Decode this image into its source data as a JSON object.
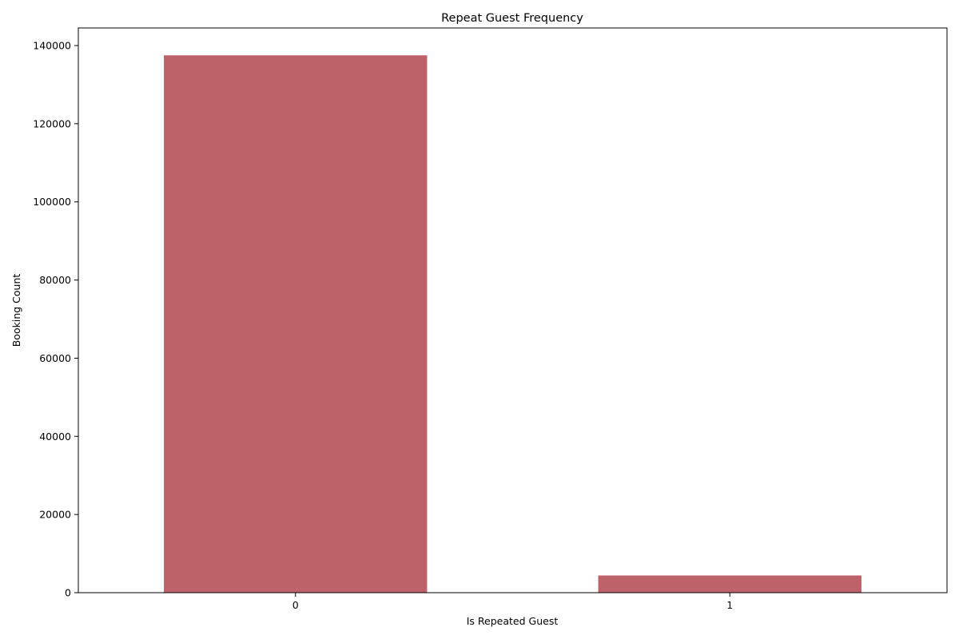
{
  "chart_data": {
    "type": "bar",
    "title": "Repeat Guest Frequency",
    "xlabel": "Is Repeated Guest",
    "ylabel": "Booking Count",
    "categories": [
      "0",
      "1"
    ],
    "values": [
      137500,
      4400
    ],
    "ylim": [
      0,
      144500
    ],
    "yticks": [
      0,
      20000,
      40000,
      60000,
      80000,
      100000,
      120000,
      140000
    ],
    "bar_color": "#be626a",
    "grid": false,
    "legend": "none"
  }
}
